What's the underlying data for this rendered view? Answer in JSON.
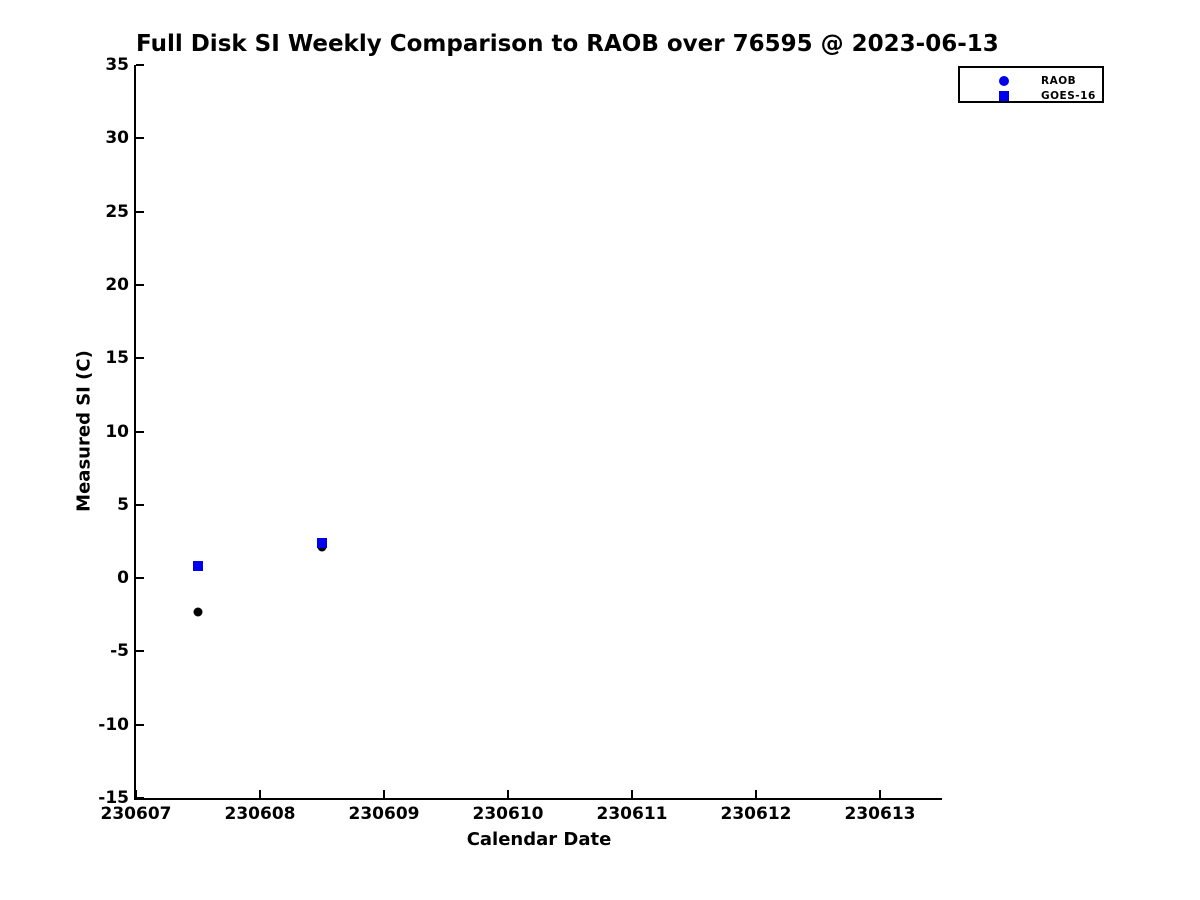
{
  "chart_data": {
    "type": "scatter",
    "title": "Full Disk SI Weekly Comparison to RAOB over 76595 @ 2023-06-13",
    "xlabel": "Calendar Date",
    "ylabel": "Measured SI (C)",
    "xlim": [
      230607,
      230613.5
    ],
    "ylim": [
      -15,
      35
    ],
    "x_ticks": [
      230607,
      230608,
      230609,
      230610,
      230611,
      230612,
      230613
    ],
    "y_ticks": [
      35,
      30,
      25,
      20,
      15,
      10,
      5,
      0,
      -5,
      -10,
      -15
    ],
    "grid": false,
    "legend_position": "top-right",
    "colors": {
      "series_blue": "#0000ee",
      "series_black": "#000000",
      "axis": "#000000",
      "background": "#ffffff"
    },
    "series": [
      {
        "name": "RAOB",
        "marker": "circle",
        "marker_color": "#000000",
        "legend_marker_color": "#0000ee",
        "x": [
          230607.5,
          230608.5
        ],
        "y": [
          -2.3,
          2.1
        ]
      },
      {
        "name": "GOES-16",
        "marker": "square",
        "marker_color": "#0000ee",
        "legend_marker_color": "#0000ee",
        "x": [
          230607.5,
          230608.5
        ],
        "y": [
          0.8,
          2.4
        ]
      }
    ]
  }
}
